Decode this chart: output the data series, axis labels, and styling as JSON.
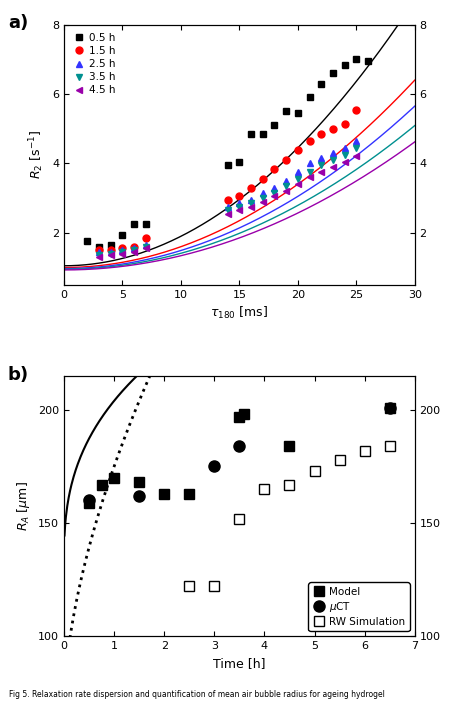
{
  "panel_a": {
    "xlim": [
      0,
      30
    ],
    "ylim": [
      0.5,
      8
    ],
    "yticks": [
      2,
      4,
      6,
      8
    ],
    "xticks": [
      0,
      5,
      10,
      15,
      20,
      25,
      30
    ],
    "series": [
      {
        "label": "0.5 h",
        "color": "#000000",
        "marker": "s",
        "x": [
          2,
          3,
          4,
          5,
          6,
          7,
          14,
          15,
          16,
          17,
          18,
          19,
          20,
          21,
          22,
          23,
          24,
          25,
          26
        ],
        "y": [
          1.75,
          1.6,
          1.65,
          1.95,
          2.25,
          2.25,
          3.95,
          4.05,
          4.85,
          4.85,
          5.1,
          5.5,
          5.45,
          5.9,
          6.3,
          6.6,
          6.85,
          7.0,
          6.95
        ],
        "fit_a": 1.05,
        "fit_b": 0.0085,
        "fit_n": 2.0
      },
      {
        "label": "1.5 h",
        "color": "#ff0000",
        "marker": "o",
        "x": [
          3,
          4,
          5,
          6,
          7,
          14,
          15,
          16,
          17,
          18,
          19,
          20,
          21,
          22,
          23,
          24,
          25
        ],
        "y": [
          1.5,
          1.5,
          1.55,
          1.6,
          1.85,
          2.95,
          3.05,
          3.3,
          3.55,
          3.85,
          4.1,
          4.4,
          4.65,
          4.85,
          5.0,
          5.15,
          5.55
        ],
        "fit_a": 1.0,
        "fit_b": 0.006,
        "fit_n": 2.0
      },
      {
        "label": "2.5 h",
        "color": "#3333ff",
        "marker": "^",
        "x": [
          3,
          4,
          5,
          6,
          7,
          14,
          15,
          16,
          17,
          18,
          19,
          20,
          21,
          22,
          23,
          24,
          25
        ],
        "y": [
          1.45,
          1.45,
          1.5,
          1.55,
          1.65,
          2.75,
          2.85,
          2.95,
          3.15,
          3.3,
          3.5,
          3.75,
          4.0,
          4.15,
          4.3,
          4.45,
          4.65
        ],
        "fit_a": 0.97,
        "fit_b": 0.0052,
        "fit_n": 2.0
      },
      {
        "label": "3.5 h",
        "color": "#009090",
        "marker": "v",
        "x": [
          3,
          4,
          5,
          6,
          7,
          14,
          15,
          16,
          17,
          18,
          19,
          20,
          21,
          22,
          23,
          24,
          25
        ],
        "y": [
          1.35,
          1.4,
          1.45,
          1.5,
          1.6,
          2.65,
          2.75,
          2.85,
          3.0,
          3.15,
          3.35,
          3.55,
          3.75,
          3.95,
          4.1,
          4.25,
          4.45
        ],
        "fit_a": 0.95,
        "fit_b": 0.0046,
        "fit_n": 2.0
      },
      {
        "label": "4.5 h",
        "color": "#9900aa",
        "marker": "<",
        "x": [
          3,
          4,
          5,
          6,
          7,
          14,
          15,
          16,
          17,
          18,
          19,
          20,
          21,
          22,
          23,
          24,
          25
        ],
        "y": [
          1.3,
          1.35,
          1.4,
          1.45,
          1.55,
          2.55,
          2.65,
          2.75,
          2.9,
          3.05,
          3.2,
          3.4,
          3.6,
          3.75,
          3.9,
          4.05,
          4.2
        ],
        "fit_a": 0.93,
        "fit_b": 0.0041,
        "fit_n": 2.0
      }
    ]
  },
  "panel_b": {
    "xlim": [
      0,
      7
    ],
    "ylim": [
      100,
      215
    ],
    "yticks": [
      100,
      150,
      200
    ],
    "xticks": [
      0,
      1,
      2,
      3,
      4,
      5,
      6,
      7
    ],
    "model_x": [
      0.5,
      0.75,
      1.0,
      1.5,
      2.0,
      2.5,
      3.5,
      3.6,
      4.5,
      6.5
    ],
    "model_y": [
      159,
      167,
      170,
      168,
      163,
      163,
      197,
      198,
      184,
      201
    ],
    "uct_x": [
      0.5,
      1.5,
      3.0,
      3.5,
      6.5
    ],
    "uct_y": [
      160,
      162,
      175,
      184,
      201
    ],
    "rw_x": [
      2.5,
      3.0,
      3.5,
      4.0,
      4.5,
      5.0,
      5.5,
      6.0,
      6.5
    ],
    "rw_y": [
      122,
      122,
      152,
      165,
      167,
      173,
      178,
      182,
      184
    ],
    "solid_a": 132.0,
    "solid_b": 72.0,
    "solid_c": 0.38,
    "dotted_a": 70.0,
    "dotted_b": 105.0,
    "dotted_c": 0.6
  },
  "caption": "Fig 5. Relaxation rate dispersion and quantification of mean air bubble radius for ageing hydrogel"
}
